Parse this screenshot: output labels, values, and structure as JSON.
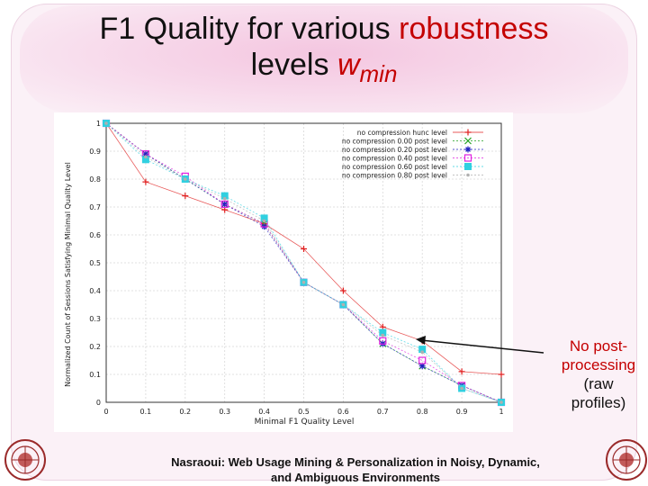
{
  "slide": {
    "title_part1": "F1 Quality for various",
    "title_part2": "robustness",
    "title_part3": "levels",
    "title_w": "w",
    "title_w_sub": "min",
    "annotation_line1": "No post-",
    "annotation_line2": "processing",
    "annotation_line3": "(raw",
    "annotation_line4": "profiles)",
    "footer_line1": "Nasraoui: Web Usage Mining & Personalization in Noisy, Dynamic,",
    "footer_line2": "and Ambiguous Environments",
    "left_logo_icon": "university-seal-icon",
    "right_logo_icon": "university-seal-icon"
  },
  "chart_data": {
    "type": "line",
    "xlabel": "Minimal F1 Quality Level",
    "ylabel": "Normalized Count of Sessions Satisfying Minimal Quality Level",
    "xlim": [
      0,
      1
    ],
    "ylim": [
      0,
      1
    ],
    "x_ticks": [
      "0",
      "0.1",
      "0.2",
      "0.3",
      "0.4",
      "0.5",
      "0.6",
      "0.7",
      "0.8",
      "0.9",
      "1"
    ],
    "y_ticks": [
      "0",
      "0.1",
      "0.2",
      "0.3",
      "0.4",
      "0.5",
      "0.6",
      "0.7",
      "0.8",
      "0.9",
      "1"
    ],
    "grid": true,
    "legend_position": "top-right",
    "x": [
      0,
      0.1,
      0.2,
      0.3,
      0.4,
      0.5,
      0.6,
      0.7,
      0.8,
      0.9,
      1
    ],
    "series": [
      {
        "name": "no compression hunc level",
        "marker": "plus",
        "color": "#e02020",
        "values": [
          1,
          0.79,
          0.74,
          0.69,
          0.64,
          0.55,
          0.4,
          0.27,
          0.22,
          0.11,
          0.1
        ]
      },
      {
        "name": "no compression 0.00 post level",
        "marker": "cross",
        "color": "#20a020",
        "values": [
          1,
          0.89,
          0.8,
          0.71,
          0.64,
          0.43,
          0.35,
          0.21,
          0.13,
          0.06,
          0
        ]
      },
      {
        "name": "no compression 0.20 post level",
        "marker": "star",
        "color": "#2020c0",
        "values": [
          1,
          0.89,
          0.8,
          0.71,
          0.63,
          0.43,
          0.35,
          0.21,
          0.13,
          0.06,
          0
        ]
      },
      {
        "name": "no compression 0.40 post level",
        "marker": "square",
        "color": "#e020e0",
        "values": [
          1,
          0.89,
          0.81,
          0.71,
          0.64,
          0.43,
          0.35,
          0.22,
          0.15,
          0.06,
          0
        ]
      },
      {
        "name": "no compression 0.60 post level",
        "marker": "filled-square",
        "color": "#30d0e0",
        "values": [
          1,
          0.87,
          0.8,
          0.74,
          0.66,
          0.43,
          0.35,
          0.25,
          0.19,
          0.05,
          0
        ]
      },
      {
        "name": "no compression 0.80 post level",
        "marker": "dot",
        "color": "#b0b0b0",
        "values": [
          1,
          0.88,
          0.8,
          0.73,
          0.65,
          0.43,
          0.35,
          0.24,
          0.18,
          0.05,
          0
        ]
      }
    ]
  }
}
